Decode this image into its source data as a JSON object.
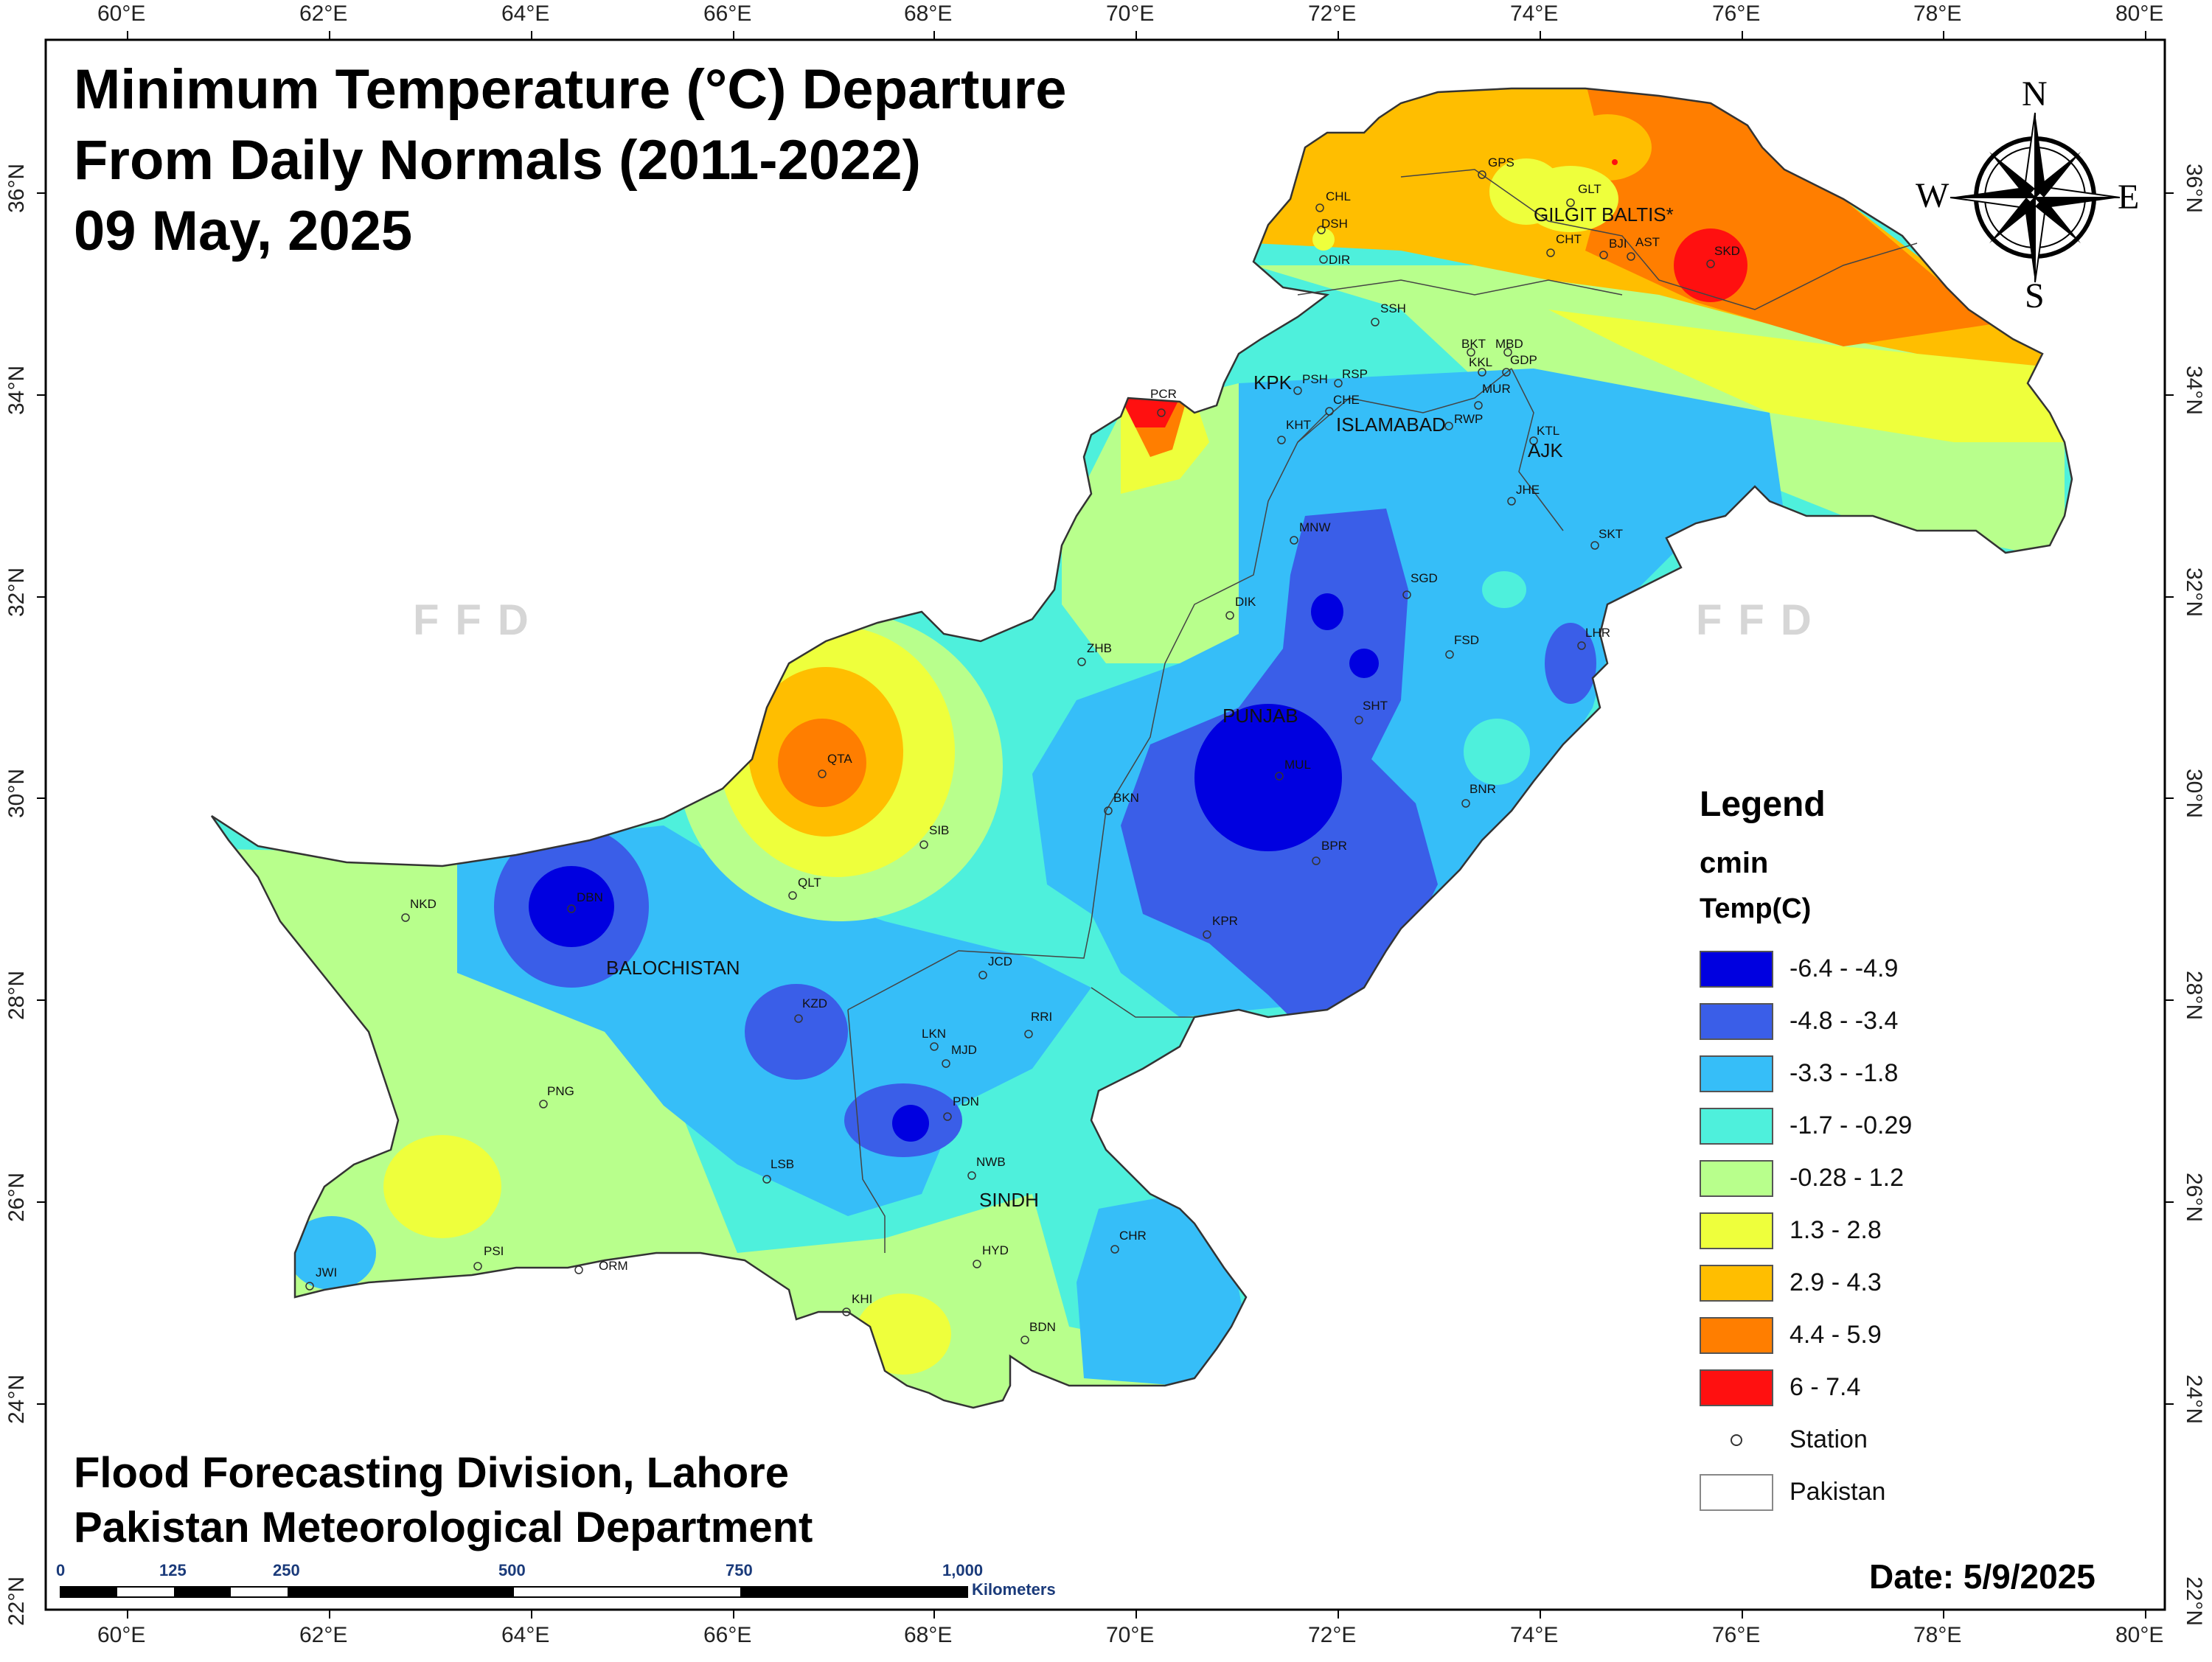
{
  "title": {
    "line1": "Minimum Temperature (°C) Departure",
    "line2": "From Daily Normals (2011-2022)",
    "line3": "09 May, 2025"
  },
  "footer": {
    "line1": "Flood Forecasting Division, Lahore",
    "line2": "Pakistan Meteorological Department"
  },
  "date": "Date: 5/9/2025",
  "watermark": "FFD",
  "compass": {
    "n": "N",
    "s": "S",
    "e": "E",
    "w": "W"
  },
  "longitude_ticks": [
    "60°E",
    "62°E",
    "64°E",
    "66°E",
    "68°E",
    "70°E",
    "72°E",
    "74°E",
    "76°E",
    "78°E",
    "80°E"
  ],
  "latitude_ticks": [
    "36°N",
    "34°N",
    "32°N",
    "30°N",
    "28°N",
    "26°N",
    "24°N",
    "22°N"
  ],
  "scale_bar": {
    "labels": [
      "0",
      "125",
      "250",
      "500",
      "750",
      "1,000"
    ],
    "unit": "Kilometers"
  },
  "legend": {
    "heading": "Legend",
    "field": "cmin",
    "units": "Temp(C)",
    "classes": [
      {
        "label": "-6.4 - -4.9",
        "color": "#0000e0"
      },
      {
        "label": "-4.8 - -3.4",
        "color": "#3a5ee8"
      },
      {
        "label": "-3.3 - -1.8",
        "color": "#36bef8"
      },
      {
        "label": "-1.7 - -0.29",
        "color": "#4ef0dc"
      },
      {
        "label": "-0.28 - 1.2",
        "color": "#b8ff8c"
      },
      {
        "label": "1.3 - 2.8",
        "color": "#eeff3c"
      },
      {
        "label": "2.9 - 4.3",
        "color": "#ffbe00"
      },
      {
        "label": "4.4 - 5.9",
        "color": "#ff7e00"
      },
      {
        "label": "6 - 7.4",
        "color": "#ff1010"
      }
    ],
    "station_label": "Station",
    "boundary_label": "Pakistan"
  },
  "regions": [
    "GILGIT BALTIS*",
    "KPK",
    "ISLAMABAD",
    "AJK",
    "PUNJAB",
    "BALOCHISTAN",
    "SINDH"
  ],
  "stations": [
    "GPS",
    "GLT",
    "CHL",
    "DSH",
    "DIR",
    "CHT",
    "BJI",
    "AST",
    "SKD",
    "SSH",
    "BKT",
    "MBD",
    "KKL",
    "GDP",
    "PSH",
    "RSP",
    "MUR",
    "CHE",
    "KHT",
    "RWP",
    "KTL",
    "PCR",
    "JHE",
    "MNW",
    "SKT",
    "SGD",
    "DIK",
    "LHR",
    "ZHB",
    "FSD",
    "SHT",
    "QTA",
    "MUL",
    "SIB",
    "BKN",
    "BNR",
    "BPR",
    "NKD",
    "QLT",
    "DBN",
    "KPR",
    "JCD",
    "KZD",
    "RRI",
    "LKN",
    "MJD",
    "PNG",
    "PDN",
    "LSB",
    "NWB",
    "PSI",
    "ORM",
    "CHR",
    "JWI",
    "HYD",
    "KHI",
    "BDN"
  ]
}
